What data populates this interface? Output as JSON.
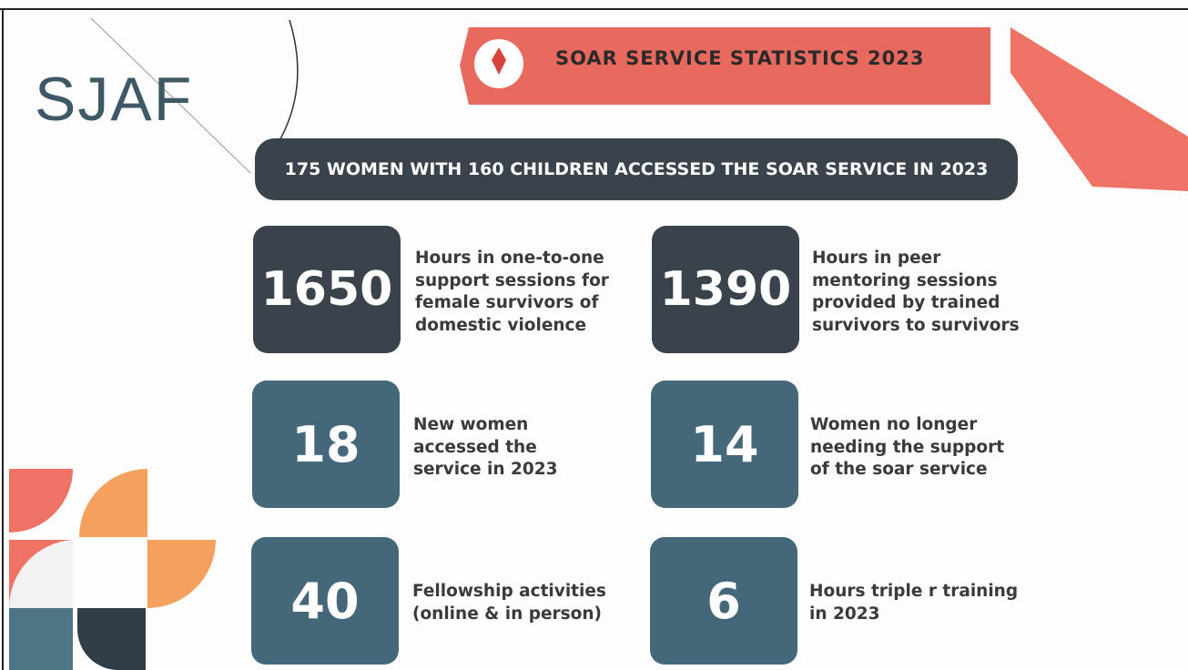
{
  "logo": "SJAF",
  "header": {
    "title": "SOAR SERVICE STATISTICS 2023"
  },
  "banner": "175 WOMEN WITH 160 CHILDREN ACCESSED THE SOAR SERVICE IN 2023",
  "stats": [
    {
      "value": "1650",
      "lines": [
        "Hours in one-to-one",
        "support sessions for",
        "female survivors of",
        "domestic violence"
      ]
    },
    {
      "value": "1390",
      "lines": [
        "Hours in peer",
        "mentoring sessions",
        "provided by trained",
        "survivors to survivors"
      ]
    },
    {
      "value": "18",
      "lines": [
        "New women",
        "accessed the",
        "service in 2023"
      ]
    },
    {
      "value": "14",
      "lines": [
        "Women no longer",
        "needing the support",
        "of the soar service"
      ]
    },
    {
      "value": "40",
      "lines": [
        "Fellowship activities",
        "(online & in person)"
      ]
    },
    {
      "value": "6",
      "lines": [
        "Hours triple r training",
        "in 2023"
      ]
    }
  ]
}
